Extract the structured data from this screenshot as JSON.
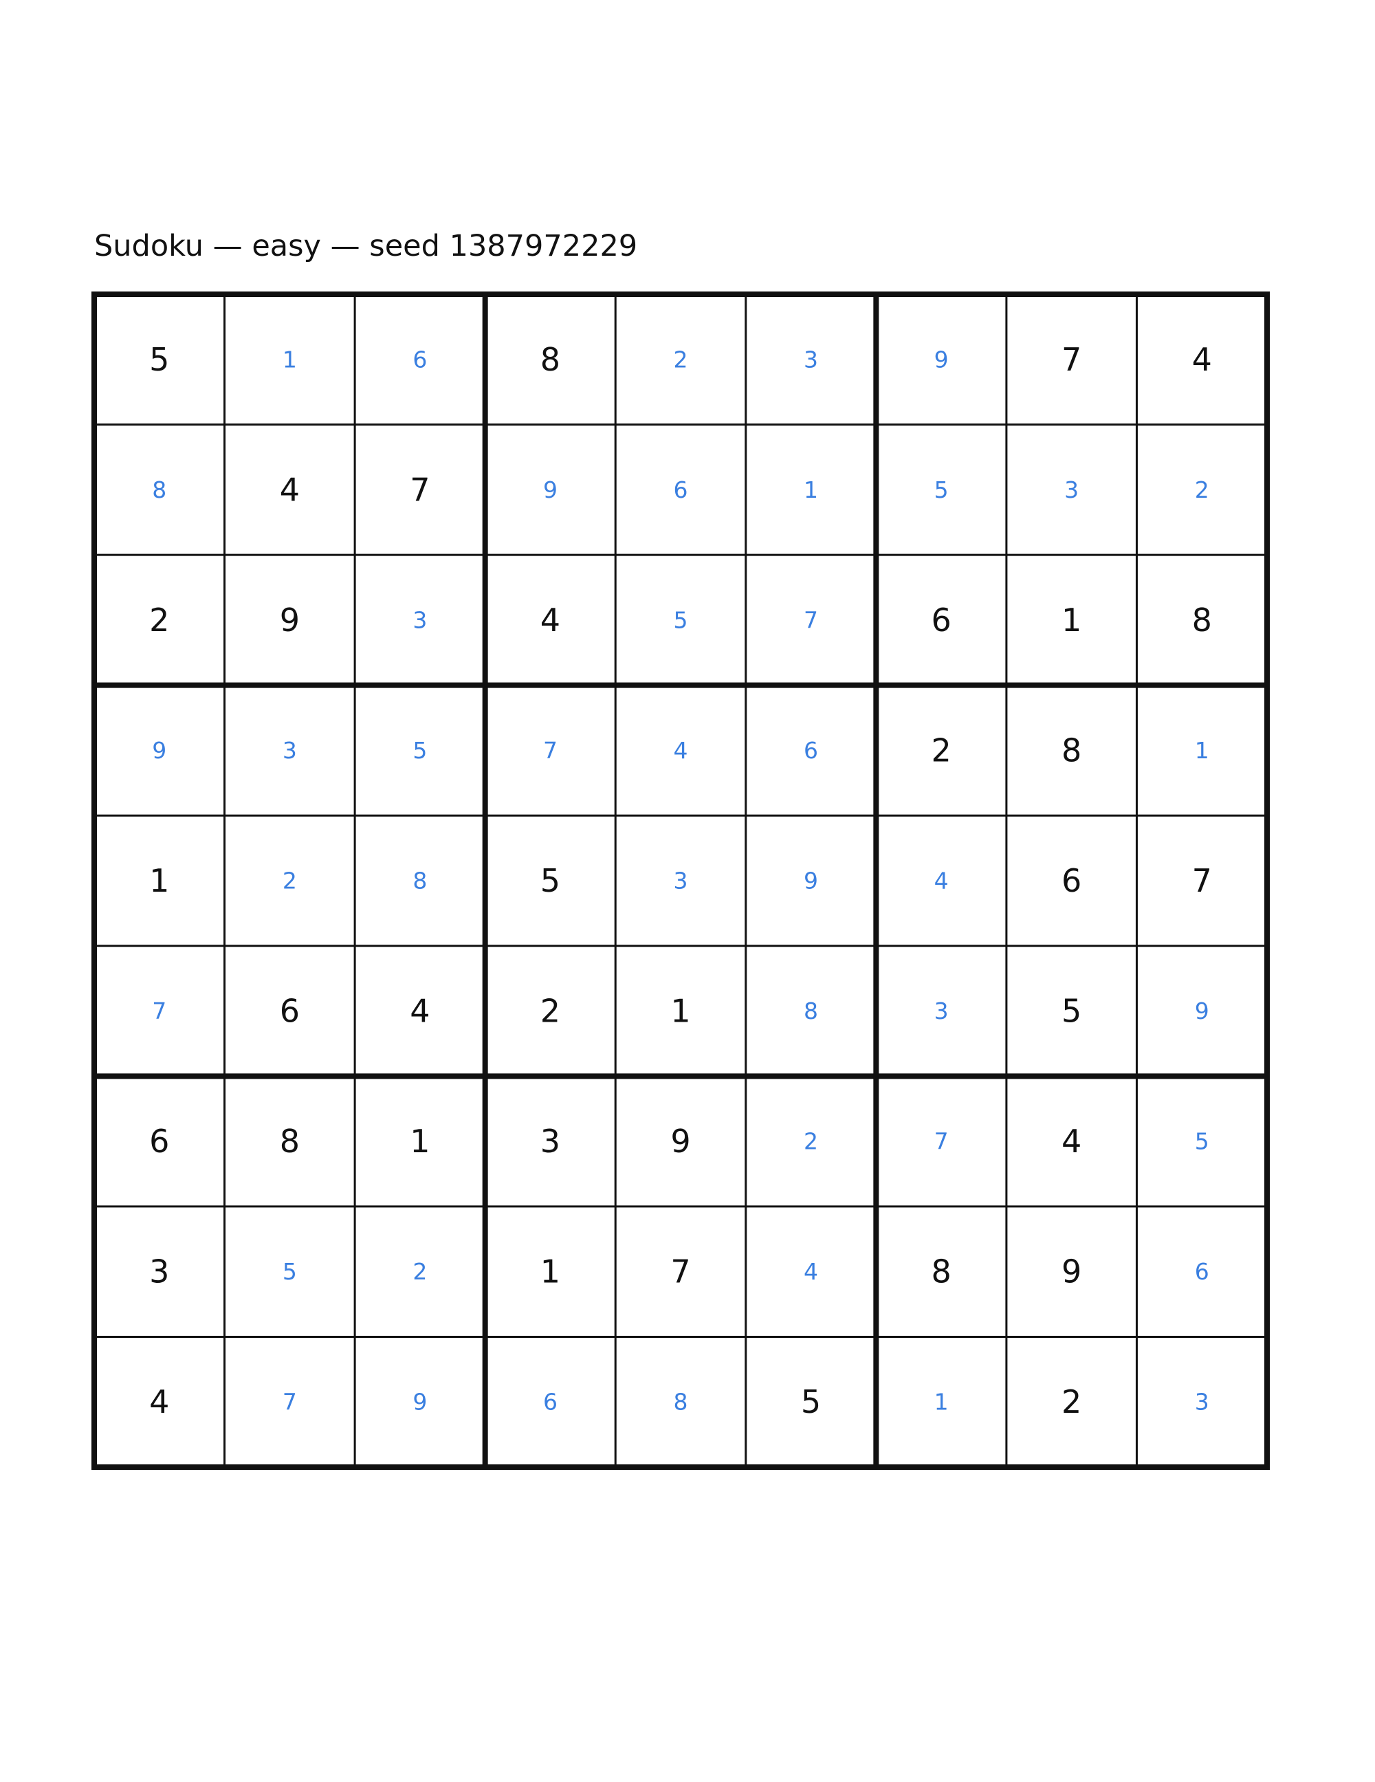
{
  "title": "Sudoku — easy — seed 1387972229",
  "grid": {
    "rows": [
      [
        5,
        1,
        6,
        8,
        2,
        3,
        9,
        7,
        4
      ],
      [
        8,
        4,
        7,
        9,
        6,
        1,
        5,
        3,
        2
      ],
      [
        2,
        9,
        3,
        4,
        5,
        7,
        6,
        1,
        8
      ],
      [
        9,
        3,
        5,
        7,
        4,
        6,
        2,
        8,
        1
      ],
      [
        1,
        2,
        8,
        5,
        3,
        9,
        4,
        6,
        7
      ],
      [
        7,
        6,
        4,
        2,
        1,
        8,
        3,
        5,
        9
      ],
      [
        6,
        8,
        1,
        3,
        9,
        2,
        7,
        4,
        5
      ],
      [
        3,
        5,
        2,
        1,
        7,
        4,
        8,
        9,
        6
      ],
      [
        4,
        7,
        9,
        6,
        8,
        5,
        1,
        2,
        3
      ]
    ],
    "given": [
      [
        true,
        false,
        false,
        true,
        false,
        false,
        false,
        true,
        true
      ],
      [
        false,
        true,
        true,
        false,
        false,
        false,
        false,
        false,
        false
      ],
      [
        true,
        true,
        false,
        true,
        false,
        false,
        true,
        true,
        true
      ],
      [
        false,
        false,
        false,
        false,
        false,
        false,
        true,
        true,
        false
      ],
      [
        true,
        false,
        false,
        true,
        false,
        false,
        false,
        true,
        true
      ],
      [
        false,
        true,
        true,
        true,
        true,
        false,
        false,
        true,
        false
      ],
      [
        true,
        true,
        true,
        true,
        true,
        false,
        false,
        true,
        false
      ],
      [
        true,
        false,
        false,
        true,
        true,
        false,
        true,
        true,
        false
      ],
      [
        true,
        false,
        false,
        false,
        false,
        true,
        false,
        true,
        false
      ]
    ],
    "given_color": "#111111",
    "solution_color": "#3a7fe0"
  }
}
